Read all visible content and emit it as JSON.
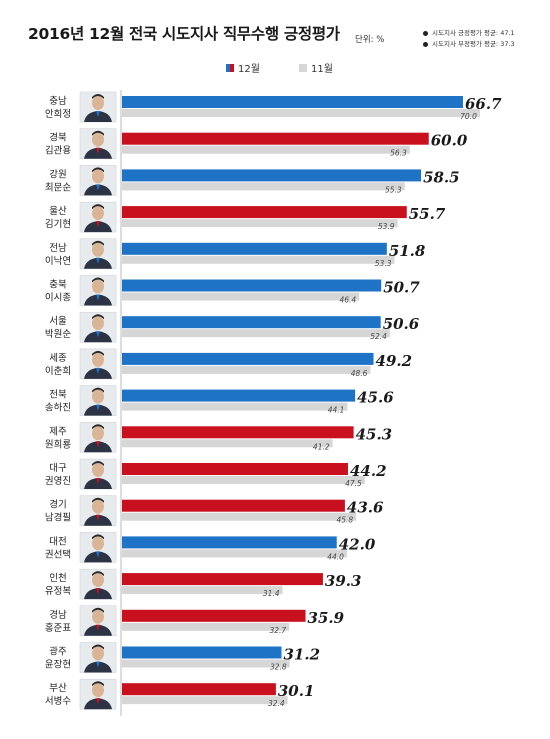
{
  "header": {
    "title": "2016년 12월 전국 시도지사 직무수행 긍정평가",
    "unit": "단위: %",
    "notes": [
      "시도지사 긍정평가 평균: 47.1",
      "시도지사 부정평가 평균: 37.3"
    ]
  },
  "colors": {
    "blue": "#1f73c7",
    "red": "#c8101f",
    "gray": "#d6d6d6"
  },
  "chart_data": {
    "type": "bar",
    "orientation": "horizontal",
    "title": "2016년 12월 전국 시도지사 직무수행 긍정평가",
    "unit": "단위: %",
    "legend": {
      "position": "top-center",
      "entries": [
        "12월",
        "11월"
      ]
    },
    "categories": [
      {
        "region": "충남",
        "name": "안희정",
        "party": "blue"
      },
      {
        "region": "경북",
        "name": "김관용",
        "party": "red"
      },
      {
        "region": "강원",
        "name": "최문순",
        "party": "blue"
      },
      {
        "region": "울산",
        "name": "김기현",
        "party": "red"
      },
      {
        "region": "전남",
        "name": "이낙연",
        "party": "blue"
      },
      {
        "region": "충북",
        "name": "이시종",
        "party": "blue"
      },
      {
        "region": "서울",
        "name": "박원순",
        "party": "blue"
      },
      {
        "region": "세종",
        "name": "이춘희",
        "party": "blue"
      },
      {
        "region": "전북",
        "name": "송하진",
        "party": "blue"
      },
      {
        "region": "제주",
        "name": "원희룡",
        "party": "red"
      },
      {
        "region": "대구",
        "name": "권영진",
        "party": "red"
      },
      {
        "region": "경기",
        "name": "남경필",
        "party": "red"
      },
      {
        "region": "대전",
        "name": "권선택",
        "party": "blue"
      },
      {
        "region": "인천",
        "name": "유정복",
        "party": "red"
      },
      {
        "region": "경남",
        "name": "홍준표",
        "party": "red"
      },
      {
        "region": "광주",
        "name": "윤장현",
        "party": "blue"
      },
      {
        "region": "부산",
        "name": "서병수",
        "party": "red"
      }
    ],
    "series": [
      {
        "name": "12월",
        "values": [
          66.7,
          60.0,
          58.5,
          55.7,
          51.8,
          50.7,
          50.6,
          49.2,
          45.6,
          45.3,
          44.2,
          43.6,
          42.0,
          39.3,
          35.9,
          31.2,
          30.1
        ]
      },
      {
        "name": "11월",
        "values": [
          70.0,
          56.3,
          55.3,
          53.9,
          53.3,
          46.4,
          52.4,
          48.6,
          44.1,
          41.2,
          47.5,
          45.8,
          44.0,
          31.4,
          32.7,
          32.8,
          32.4
        ]
      }
    ],
    "xlim": [
      0,
      72
    ]
  }
}
